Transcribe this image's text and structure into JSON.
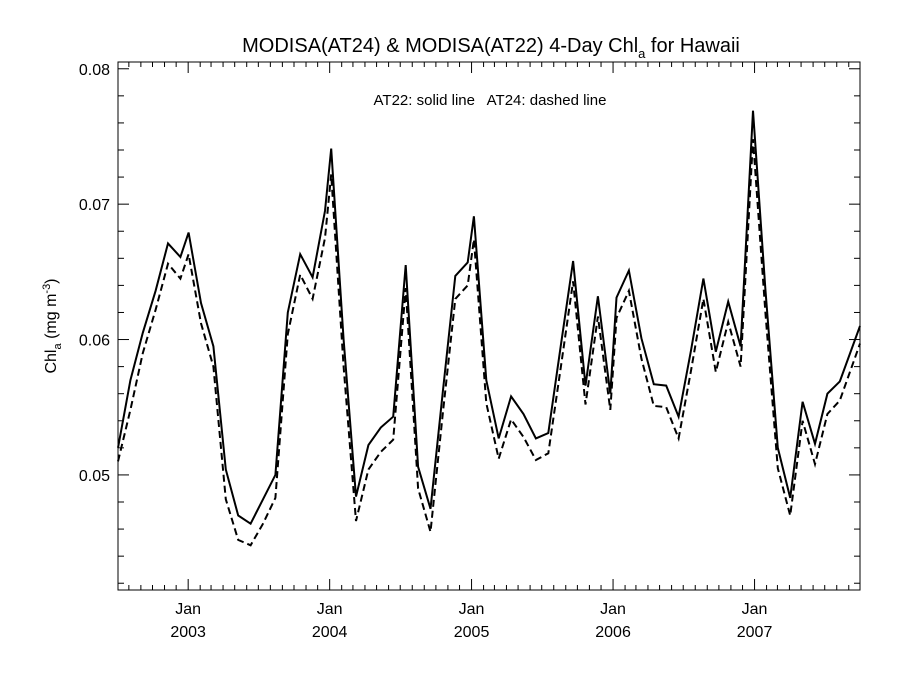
{
  "chart_data": {
    "type": "line",
    "title": {
      "main": "MODISA(AT24) & MODISA(AT22) 4-Day Chl",
      "sub": "a",
      "suffix": " for Hawaii"
    },
    "ylabel": {
      "main": "Chl",
      "sub": "a",
      "unit_pre": " (mg m",
      "sup": "-3",
      "unit_post": ")"
    },
    "annotation": "AT22: solid line   AT24: dashed line",
    "xlim": [
      "2002-07-04",
      "2007-09-30"
    ],
    "ylim": [
      0.0415,
      0.0805
    ],
    "yticks": [
      0.05,
      0.06,
      0.07,
      0.08
    ],
    "ytick_labels": [
      "0.05",
      "0.06",
      "0.07",
      "0.08"
    ],
    "xticks": [
      {
        "date": "2003-01-01",
        "month": "Jan",
        "year": "2003"
      },
      {
        "date": "2004-01-01",
        "month": "Jan",
        "year": "2004"
      },
      {
        "date": "2005-01-01",
        "month": "Jan",
        "year": "2005"
      },
      {
        "date": "2006-01-01",
        "month": "Jan",
        "year": "2006"
      },
      {
        "date": "2007-01-01",
        "month": "Jan",
        "year": "2007"
      }
    ],
    "grid": false,
    "series": [
      {
        "style": "solid",
        "points": [
          [
            "2002-07-04",
            0.052
          ],
          [
            "2002-08-05",
            0.057
          ],
          [
            "2002-09-06",
            0.0605
          ],
          [
            "2002-10-09",
            0.0636
          ],
          [
            "2002-11-10",
            0.0671
          ],
          [
            "2002-12-12",
            0.0661
          ],
          [
            "2003-01-02",
            0.0679
          ],
          [
            "2003-02-03",
            0.0627
          ],
          [
            "2003-03-07",
            0.0595
          ],
          [
            "2003-04-08",
            0.0504
          ],
          [
            "2003-05-10",
            0.047
          ],
          [
            "2003-06-11",
            0.0464
          ],
          [
            "2003-07-13",
            0.0482
          ],
          [
            "2003-08-14",
            0.05
          ],
          [
            "2003-09-15",
            0.062
          ],
          [
            "2003-10-17",
            0.0663
          ],
          [
            "2003-11-18",
            0.0646
          ],
          [
            "2003-12-20",
            0.0695
          ],
          [
            "2004-01-05",
            0.0741
          ],
          [
            "2004-02-06",
            0.06
          ],
          [
            "2004-03-09",
            0.0484
          ],
          [
            "2004-04-10",
            0.0522
          ],
          [
            "2004-05-12",
            0.0535
          ],
          [
            "2004-06-13",
            0.0543
          ],
          [
            "2004-07-15",
            0.0655
          ],
          [
            "2004-08-16",
            0.0506
          ],
          [
            "2004-09-17",
            0.0475
          ],
          [
            "2004-10-19",
            0.0562
          ],
          [
            "2004-11-20",
            0.0647
          ],
          [
            "2004-12-22",
            0.0657
          ],
          [
            "2005-01-07",
            0.0691
          ],
          [
            "2005-02-08",
            0.057
          ],
          [
            "2005-03-12",
            0.0527
          ],
          [
            "2005-04-13",
            0.0558
          ],
          [
            "2005-05-15",
            0.0545
          ],
          [
            "2005-06-16",
            0.0527
          ],
          [
            "2005-07-18",
            0.0531
          ],
          [
            "2005-08-19",
            0.0595
          ],
          [
            "2005-09-20",
            0.0658
          ],
          [
            "2005-10-22",
            0.0566
          ],
          [
            "2005-11-23",
            0.0632
          ],
          [
            "2005-12-25",
            0.056
          ],
          [
            "2006-01-10",
            0.0631
          ],
          [
            "2006-02-11",
            0.0651
          ],
          [
            "2006-03-15",
            0.0601
          ],
          [
            "2006-04-16",
            0.0567
          ],
          [
            "2006-05-18",
            0.0566
          ],
          [
            "2006-06-19",
            0.0543
          ],
          [
            "2006-07-21",
            0.0592
          ],
          [
            "2006-08-22",
            0.0645
          ],
          [
            "2006-09-23",
            0.0591
          ],
          [
            "2006-10-25",
            0.0628
          ],
          [
            "2006-11-26",
            0.0595
          ],
          [
            "2006-12-28",
            0.0769
          ],
          [
            "2007-01-29",
            0.0637
          ],
          [
            "2007-03-02",
            0.052
          ],
          [
            "2007-04-03",
            0.0483
          ],
          [
            "2007-05-05",
            0.0554
          ],
          [
            "2007-06-06",
            0.0523
          ],
          [
            "2007-07-08",
            0.056
          ],
          [
            "2007-08-09",
            0.0569
          ],
          [
            "2007-09-30",
            0.061
          ]
        ]
      },
      {
        "style": "dashed",
        "points": [
          [
            "2002-07-04",
            0.051
          ],
          [
            "2002-08-05",
            0.0548
          ],
          [
            "2002-09-06",
            0.059
          ],
          [
            "2002-10-09",
            0.0622
          ],
          [
            "2002-11-10",
            0.0656
          ],
          [
            "2002-12-12",
            0.0645
          ],
          [
            "2003-01-02",
            0.0663
          ],
          [
            "2003-02-03",
            0.0612
          ],
          [
            "2003-03-07",
            0.058
          ],
          [
            "2003-04-08",
            0.0482
          ],
          [
            "2003-05-10",
            0.0452
          ],
          [
            "2003-06-11",
            0.0448
          ],
          [
            "2003-07-13",
            0.0464
          ],
          [
            "2003-08-14",
            0.0483
          ],
          [
            "2003-09-15",
            0.0604
          ],
          [
            "2003-10-17",
            0.0648
          ],
          [
            "2003-11-18",
            0.063
          ],
          [
            "2003-12-20",
            0.0675
          ],
          [
            "2004-01-05",
            0.0722
          ],
          [
            "2004-02-06",
            0.058
          ],
          [
            "2004-03-09",
            0.0466
          ],
          [
            "2004-04-10",
            0.0504
          ],
          [
            "2004-05-12",
            0.0517
          ],
          [
            "2004-06-13",
            0.0526
          ],
          [
            "2004-07-15",
            0.0638
          ],
          [
            "2004-08-16",
            0.049
          ],
          [
            "2004-09-17",
            0.0458
          ],
          [
            "2004-10-19",
            0.0546
          ],
          [
            "2004-11-20",
            0.063
          ],
          [
            "2004-12-22",
            0.064
          ],
          [
            "2005-01-07",
            0.0674
          ],
          [
            "2005-02-08",
            0.0553
          ],
          [
            "2005-03-12",
            0.0512
          ],
          [
            "2005-04-13",
            0.0541
          ],
          [
            "2005-05-15",
            0.0528
          ],
          [
            "2005-06-16",
            0.0511
          ],
          [
            "2005-07-18",
            0.0516
          ],
          [
            "2005-08-19",
            0.0579
          ],
          [
            "2005-09-20",
            0.0643
          ],
          [
            "2005-10-22",
            0.0552
          ],
          [
            "2005-11-23",
            0.0617
          ],
          [
            "2005-12-25",
            0.0548
          ],
          [
            "2006-01-10",
            0.0616
          ],
          [
            "2006-02-11",
            0.0636
          ],
          [
            "2006-03-15",
            0.0586
          ],
          [
            "2006-04-16",
            0.0551
          ],
          [
            "2006-05-18",
            0.055
          ],
          [
            "2006-06-19",
            0.0527
          ],
          [
            "2006-07-21",
            0.0577
          ],
          [
            "2006-08-22",
            0.063
          ],
          [
            "2006-09-23",
            0.0576
          ],
          [
            "2006-10-25",
            0.0613
          ],
          [
            "2006-11-26",
            0.058
          ],
          [
            "2006-12-28",
            0.0748
          ],
          [
            "2007-01-29",
            0.062
          ],
          [
            "2007-03-02",
            0.0505
          ],
          [
            "2007-04-03",
            0.047
          ],
          [
            "2007-05-05",
            0.054
          ],
          [
            "2007-06-06",
            0.0508
          ],
          [
            "2007-07-08",
            0.0545
          ],
          [
            "2007-08-09",
            0.0555
          ],
          [
            "2007-09-30",
            0.0597
          ]
        ]
      }
    ]
  }
}
